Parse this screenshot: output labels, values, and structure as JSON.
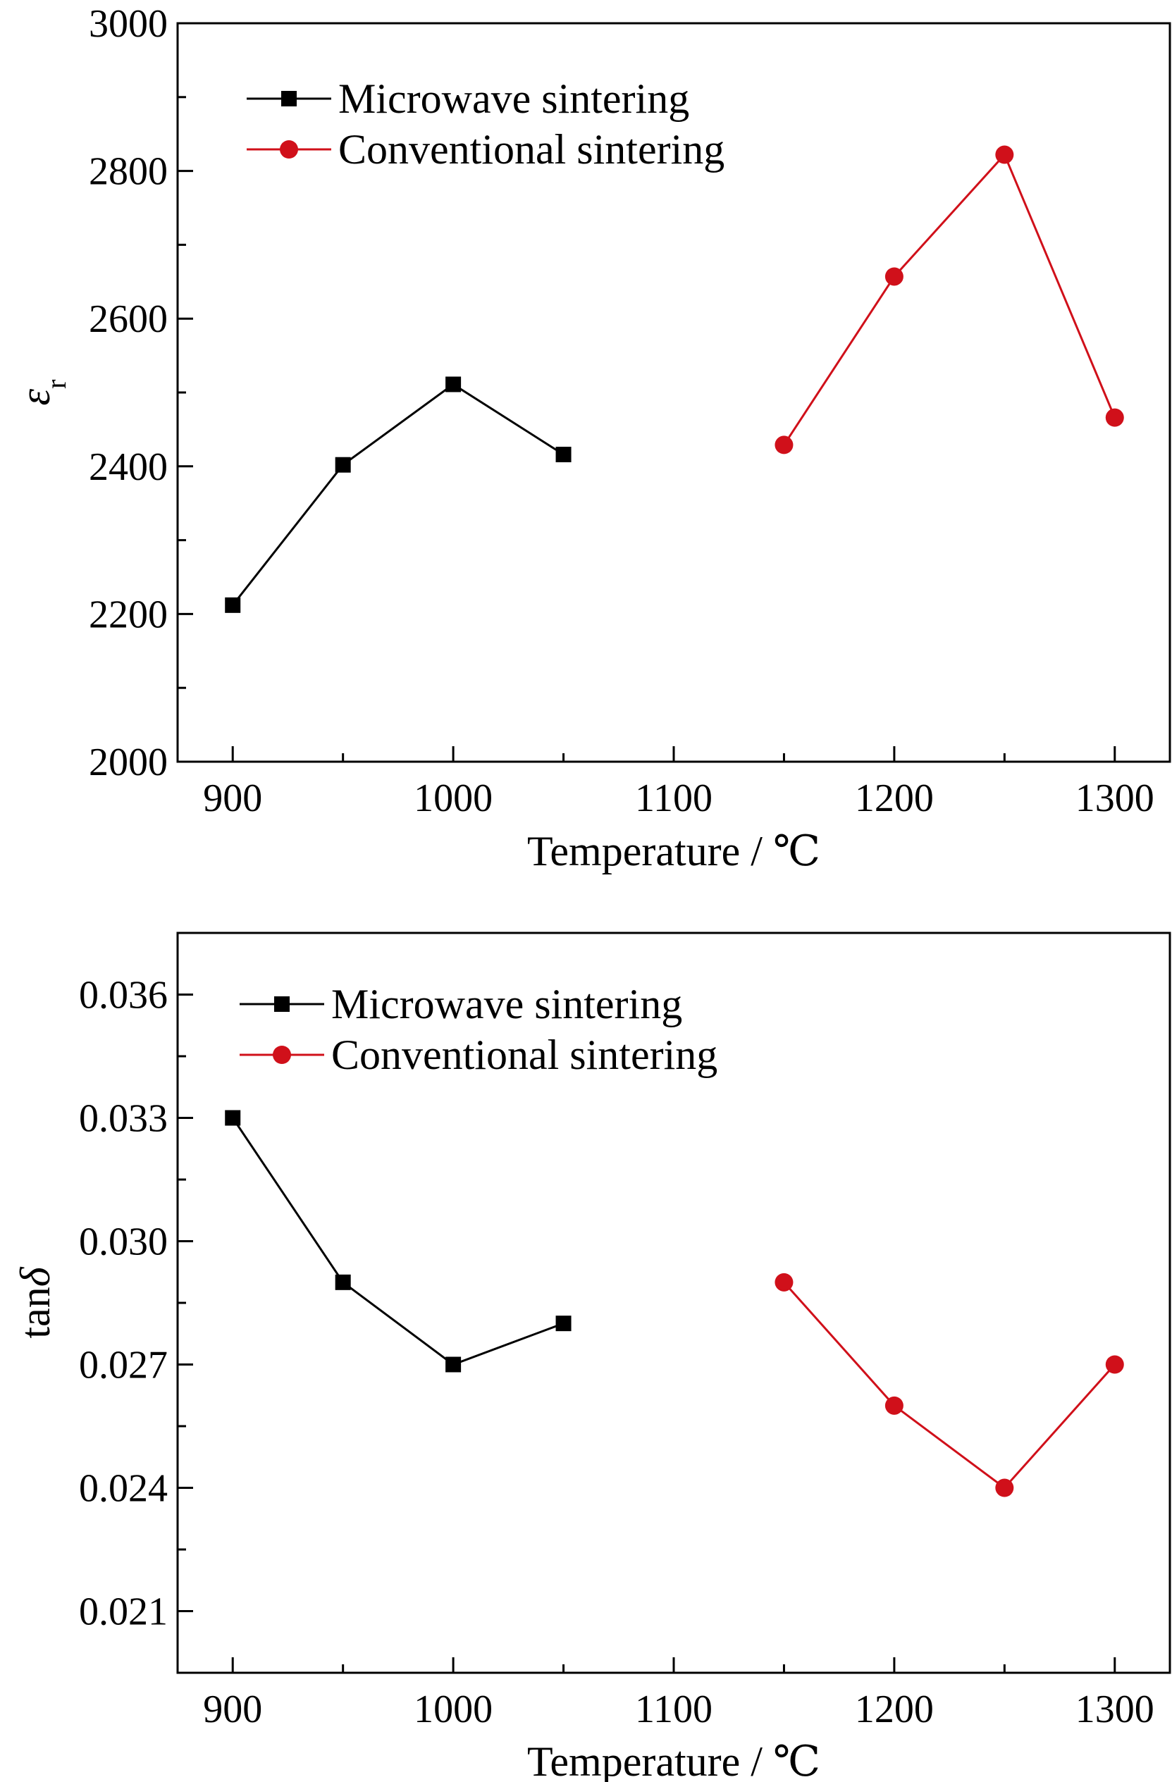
{
  "chart_data": [
    {
      "type": "line",
      "xlabel": "Temperature / ℃",
      "ylabel_main": "ε",
      "ylabel_sub": "r",
      "xlim": [
        875,
        1325
      ],
      "ylim": [
        2000,
        3000
      ],
      "xticks": [
        900,
        1000,
        1100,
        1200,
        1300
      ],
      "yticks": [
        2000,
        2200,
        2400,
        2600,
        2800,
        3000
      ],
      "ytick_labels": [
        "2000",
        "2200",
        "2400",
        "2600",
        "2800",
        "3000"
      ],
      "legend_position": "top-left",
      "grid": false,
      "series": [
        {
          "name": "Microwave sintering",
          "color": "#000000",
          "marker": "square",
          "x": [
            900,
            950,
            1000,
            1050
          ],
          "y": [
            2212,
            2402,
            2511,
            2416
          ]
        },
        {
          "name": "Conventional sintering",
          "color": "#d0101a",
          "marker": "circle",
          "x": [
            1150,
            1200,
            1250,
            1300
          ],
          "y": [
            2429,
            2657,
            2822,
            2466
          ]
        }
      ]
    },
    {
      "type": "line",
      "xlabel": "Temperature / ℃",
      "ylabel_main": "tan",
      "ylabel_sub": "δ",
      "xlim": [
        875,
        1325
      ],
      "ylim": [
        0.0195,
        0.0375
      ],
      "xticks": [
        900,
        1000,
        1100,
        1200,
        1300
      ],
      "yticks": [
        0.021,
        0.024,
        0.027,
        0.03,
        0.033,
        0.036
      ],
      "ytick_labels": [
        "0.021",
        "0.024",
        "0.027",
        "0.030",
        "0.033",
        "0.036"
      ],
      "legend_position": "top-left",
      "grid": false,
      "series": [
        {
          "name": "Microwave sintering",
          "color": "#000000",
          "marker": "square",
          "x": [
            900,
            950,
            1000,
            1050
          ],
          "y": [
            0.033,
            0.029,
            0.027,
            0.028
          ]
        },
        {
          "name": "Conventional sintering",
          "color": "#d0101a",
          "marker": "circle",
          "x": [
            1150,
            1200,
            1250,
            1300
          ],
          "y": [
            0.029,
            0.026,
            0.024,
            0.027
          ]
        }
      ]
    }
  ]
}
